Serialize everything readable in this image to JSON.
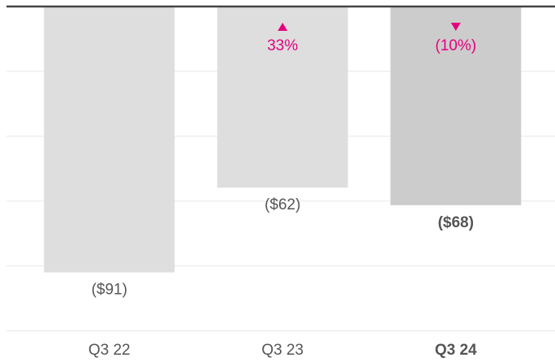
{
  "chart_data": {
    "type": "bar",
    "categories": [
      "Q3 22",
      "Q3 23",
      "Q3 24"
    ],
    "values": [
      -91,
      -62,
      -68
    ],
    "value_labels": [
      "($91)",
      "($62)",
      "($68)"
    ],
    "colors": [
      "#dedede",
      "#dedede",
      "#cccccc"
    ],
    "highlight": 2,
    "changes": [
      null,
      33,
      -10
    ],
    "change_labels": [
      null,
      "33%",
      "(10%)"
    ],
    "change_color": "#e6007e",
    "ylim": [
      -111,
      0
    ],
    "grid": true
  }
}
